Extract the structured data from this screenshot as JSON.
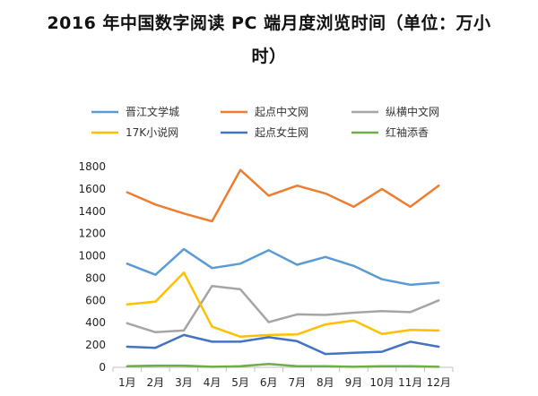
{
  "chart_data": {
    "type": "line",
    "title_line1": "2016 年中国数字阅读 PC 端月度浏览时间（单位：万小",
    "title_line2": "时）",
    "categories": [
      "1月",
      "2月",
      "3月",
      "4月",
      "5月",
      "6月",
      "7月",
      "8月",
      "9月",
      "10月",
      "11月",
      "12月"
    ],
    "ylim": [
      0,
      1800
    ],
    "ytick_step": 200,
    "yticks": [
      "0",
      "200",
      "400",
      "600",
      "800",
      "1000",
      "1200",
      "1400",
      "1600",
      "1800"
    ],
    "grid": false,
    "legend_position": "top",
    "series": [
      {
        "name": "晋江文学城",
        "color": "#5b9bd5",
        "values": [
          930,
          830,
          1060,
          890,
          930,
          1050,
          920,
          990,
          910,
          790,
          740,
          760
        ]
      },
      {
        "name": "起点中文网",
        "color": "#ed7d31",
        "values": [
          1570,
          1460,
          1380,
          1310,
          1770,
          1540,
          1630,
          1560,
          1440,
          1600,
          1440,
          1630
        ]
      },
      {
        "name": "纵横中文网",
        "color": "#a5a5a5",
        "values": [
          395,
          315,
          330,
          730,
          700,
          405,
          475,
          470,
          490,
          505,
          495,
          600
        ]
      },
      {
        "name": "17K小说网",
        "color": "#ffc000",
        "values": [
          565,
          590,
          850,
          365,
          275,
          290,
          295,
          385,
          420,
          300,
          335,
          330
        ]
      },
      {
        "name": "起点女生网",
        "color": "#4472c4",
        "values": [
          185,
          175,
          290,
          230,
          230,
          270,
          235,
          120,
          130,
          140,
          230,
          185
        ]
      },
      {
        "name": "红袖添香",
        "color": "#70ad47",
        "values": [
          10,
          15,
          15,
          5,
          10,
          30,
          10,
          10,
          5,
          10,
          10,
          5
        ]
      }
    ]
  }
}
